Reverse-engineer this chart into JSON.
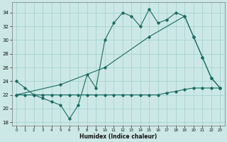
{
  "xlabel": "Humidex (Indice chaleur)",
  "bg_color": "#cce8e6",
  "grid_color": "#9dcfcb",
  "line_color": "#1a6b61",
  "xlim": [
    -0.5,
    23.5
  ],
  "ylim": [
    17.5,
    35.5
  ],
  "xticks": [
    0,
    1,
    2,
    3,
    4,
    5,
    6,
    7,
    8,
    9,
    10,
    11,
    12,
    13,
    14,
    15,
    16,
    17,
    18,
    19,
    20,
    21,
    22,
    23
  ],
  "yticks": [
    18,
    20,
    22,
    24,
    26,
    28,
    30,
    32,
    34
  ],
  "line1_x": [
    0,
    1,
    2,
    3,
    4,
    5,
    6,
    7,
    8,
    9,
    10,
    11,
    12,
    13,
    14,
    15,
    16,
    17,
    18,
    19,
    20,
    21,
    22,
    23
  ],
  "line1_y": [
    24,
    23,
    22,
    21.5,
    21,
    20.5,
    18.5,
    20.5,
    25,
    23,
    30,
    32.5,
    34,
    33.5,
    32,
    34.5,
    32.5,
    33,
    34,
    33.5,
    30.5,
    27.5,
    24.5,
    23
  ],
  "line2_x": [
    0,
    5,
    10,
    15,
    19,
    20,
    21,
    22,
    23
  ],
  "line2_y": [
    22,
    23.5,
    26,
    30.5,
    33.5,
    30.5,
    27.5,
    24.5,
    23
  ],
  "line3_x": [
    0,
    1,
    2,
    3,
    4,
    5,
    6,
    7,
    8,
    9,
    10,
    11,
    12,
    13,
    14,
    15,
    16,
    17,
    18,
    19,
    20,
    21,
    22,
    23
  ],
  "line3_y": [
    22,
    22,
    22,
    22,
    22,
    22,
    22,
    22,
    22,
    22,
    22,
    22,
    22,
    22,
    22,
    22,
    22,
    22.3,
    22.5,
    22.8,
    23,
    23,
    23,
    23
  ]
}
